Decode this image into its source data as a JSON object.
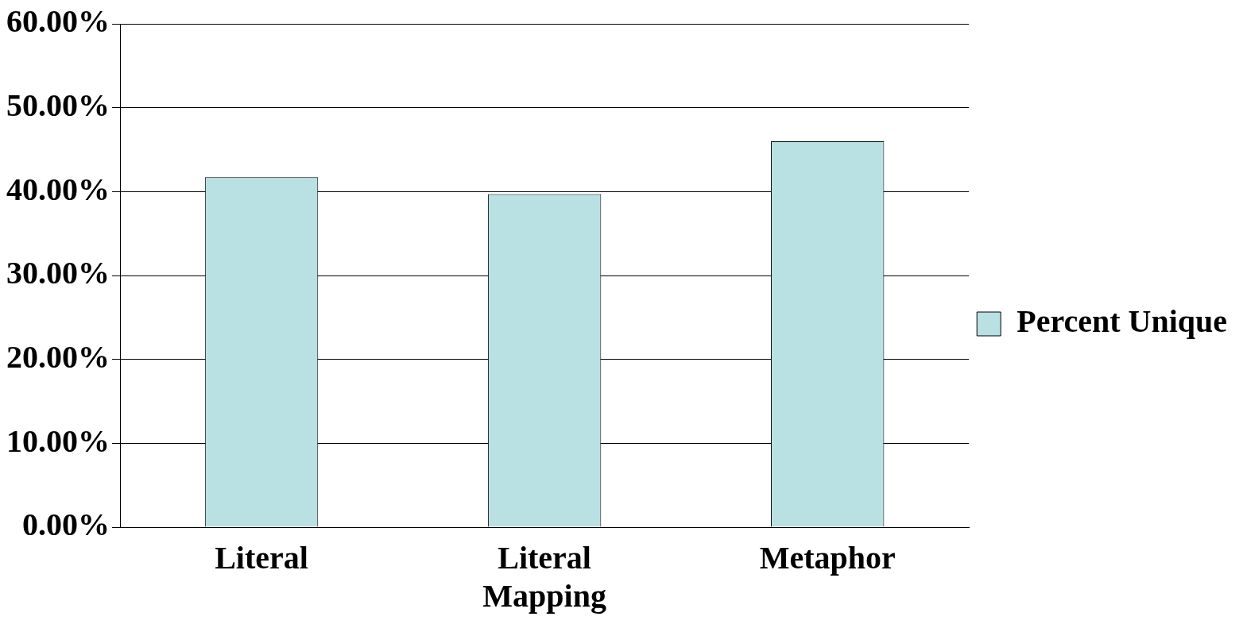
{
  "chart_data": {
    "type": "bar",
    "categories": [
      "Literal",
      "Literal Mapping",
      "Metaphor"
    ],
    "series": [
      {
        "name": "Percent Unique",
        "color": "#b9e0e3",
        "values": [
          41.7,
          39.7,
          46.0
        ]
      }
    ],
    "ylim": [
      0,
      60
    ],
    "yticks": [
      {
        "value": 0,
        "label": "0.00%"
      },
      {
        "value": 10,
        "label": "10.00%"
      },
      {
        "value": 20,
        "label": "20.00%"
      },
      {
        "value": 30,
        "label": "30.00%"
      },
      {
        "value": 40,
        "label": "40.00%"
      },
      {
        "value": 50,
        "label": "50.00%"
      },
      {
        "value": 60,
        "label": "60.00%"
      }
    ],
    "grid": "y",
    "legend": "right"
  }
}
